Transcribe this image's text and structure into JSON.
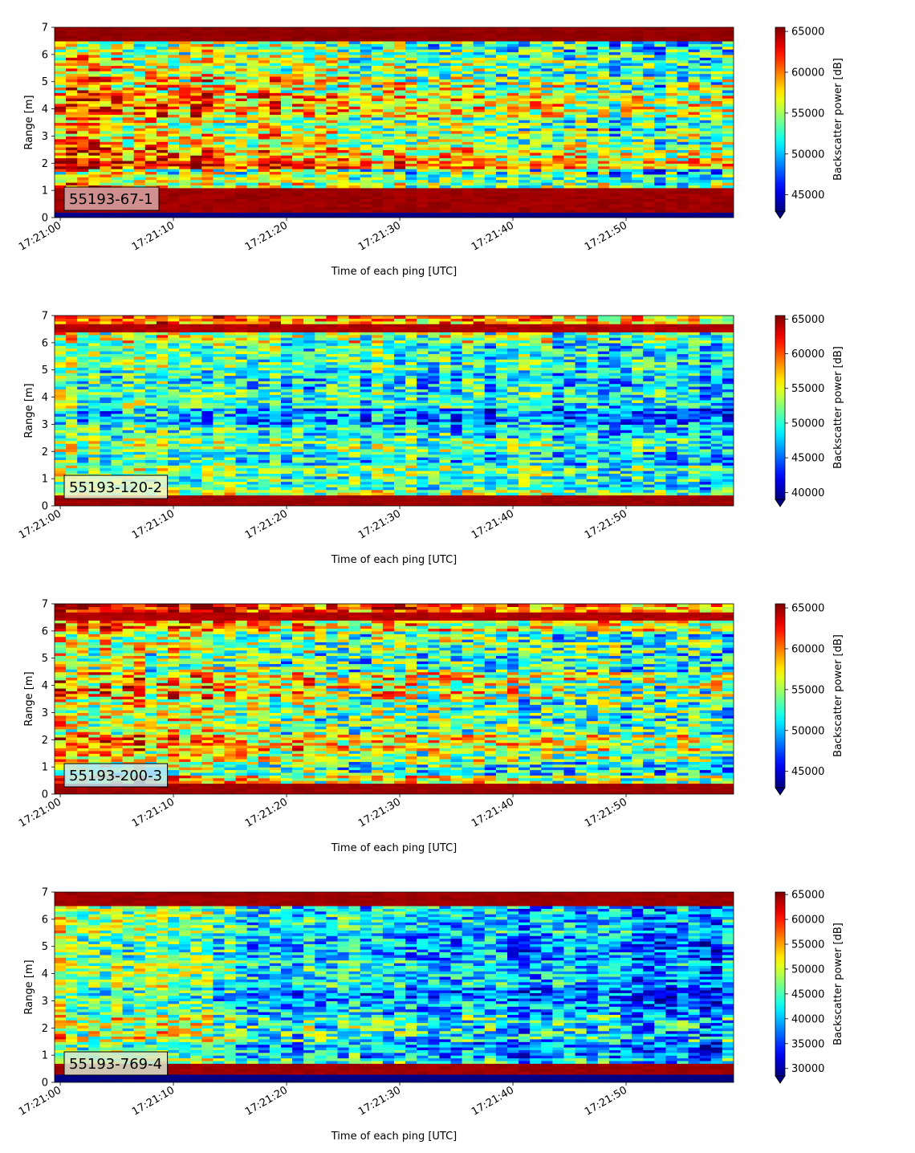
{
  "chart_data": [
    {
      "type": "heatmap",
      "label": "55193-67-1",
      "xlabel": "Time of each ping [UTC]",
      "ylabel": "Range [m]",
      "x_range": [
        "17:21:00",
        "17:21:59"
      ],
      "x_ticks": [
        "17:21:00",
        "17:21:10",
        "17:21:20",
        "17:21:30",
        "17:21:40",
        "17:21:50"
      ],
      "ylim": [
        0,
        7
      ],
      "y_ticks": [
        0,
        1,
        2,
        3,
        4,
        5,
        6,
        7
      ],
      "colorbar": {
        "label": "Backscatter power [dB]",
        "min": 43000,
        "max": 65500,
        "ticks": [
          45000,
          50000,
          55000,
          60000,
          65000
        ],
        "extend": "min",
        "colormap": "jet"
      },
      "label_box_color": "#d8a8a8",
      "bands": [
        [
          0.0,
          0.2,
          0.0,
          0.03
        ],
        [
          0.2,
          1.05,
          0.97,
          0.04
        ],
        [
          1.05,
          1.3,
          0.6,
          0.25
        ],
        [
          1.3,
          1.6,
          0.55,
          0.2
        ],
        [
          1.6,
          1.8,
          0.5,
          0.3
        ],
        [
          1.8,
          2.1,
          0.8,
          0.2
        ],
        [
          2.1,
          2.6,
          0.7,
          0.25
        ],
        [
          2.6,
          3.2,
          0.6,
          0.25
        ],
        [
          3.2,
          3.7,
          0.55,
          0.25
        ],
        [
          3.7,
          4.6,
          0.7,
          0.25
        ],
        [
          4.6,
          5.2,
          0.6,
          0.3
        ],
        [
          5.2,
          6.0,
          0.55,
          0.25
        ],
        [
          6.0,
          6.5,
          0.5,
          0.25
        ],
        [
          6.5,
          7.0,
          0.98,
          0.03
        ]
      ],
      "x_trend": [
        0.1,
        0.0,
        -0.1,
        -0.15
      ]
    },
    {
      "type": "heatmap",
      "label": "55193-120-2",
      "xlabel": "Time of each ping [UTC]",
      "ylabel": "Range [m]",
      "x_range": [
        "17:21:00",
        "17:21:59"
      ],
      "x_ticks": [
        "17:21:00",
        "17:21:10",
        "17:21:20",
        "17:21:30",
        "17:21:40",
        "17:21:50"
      ],
      "ylim": [
        0,
        7
      ],
      "y_ticks": [
        0,
        1,
        2,
        3,
        4,
        5,
        6,
        7
      ],
      "colorbar": {
        "label": "Backscatter power [dB]",
        "min": 39000,
        "max": 65500,
        "ticks": [
          40000,
          45000,
          50000,
          55000,
          60000,
          65000
        ],
        "extend": "min",
        "colormap": "jet"
      },
      "label_box_color": "#f0f4d0",
      "bands": [
        [
          0.0,
          0.35,
          0.97,
          0.03
        ],
        [
          0.35,
          0.6,
          0.55,
          0.2
        ],
        [
          0.6,
          1.1,
          0.45,
          0.2
        ],
        [
          1.1,
          1.5,
          0.5,
          0.2
        ],
        [
          1.5,
          2.0,
          0.4,
          0.2
        ],
        [
          2.0,
          2.5,
          0.5,
          0.2
        ],
        [
          2.5,
          3.0,
          0.4,
          0.2
        ],
        [
          3.0,
          3.6,
          0.3,
          0.2
        ],
        [
          3.6,
          4.3,
          0.45,
          0.2
        ],
        [
          4.3,
          5.0,
          0.4,
          0.2
        ],
        [
          5.0,
          6.0,
          0.45,
          0.2
        ],
        [
          6.0,
          6.4,
          0.55,
          0.25
        ],
        [
          6.4,
          6.7,
          0.95,
          0.05
        ],
        [
          6.7,
          7.0,
          0.75,
          0.2
        ]
      ],
      "x_trend": [
        0.05,
        0.0,
        -0.05,
        -0.1
      ]
    },
    {
      "type": "heatmap",
      "label": "55193-200-3",
      "xlabel": "Time of each ping [UTC]",
      "ylabel": "Range [m]",
      "x_range": [
        "17:21:00",
        "17:21:59"
      ],
      "x_ticks": [
        "17:21:00",
        "17:21:10",
        "17:21:20",
        "17:21:30",
        "17:21:40",
        "17:21:50"
      ],
      "ylim": [
        0,
        7
      ],
      "y_ticks": [
        0,
        1,
        2,
        3,
        4,
        5,
        6,
        7
      ],
      "colorbar": {
        "label": "Backscatter power [dB]",
        "min": 43000,
        "max": 65500,
        "ticks": [
          45000,
          50000,
          55000,
          60000,
          65000
        ],
        "extend": "min",
        "colormap": "jet"
      },
      "label_box_color": "#c0e8f4",
      "bands": [
        [
          0.0,
          0.4,
          0.97,
          0.03
        ],
        [
          0.4,
          0.7,
          0.6,
          0.25
        ],
        [
          0.7,
          1.2,
          0.45,
          0.25
        ],
        [
          1.2,
          1.6,
          0.55,
          0.25
        ],
        [
          1.6,
          2.2,
          0.65,
          0.25
        ],
        [
          2.2,
          2.8,
          0.5,
          0.25
        ],
        [
          2.8,
          3.5,
          0.5,
          0.25
        ],
        [
          3.5,
          4.5,
          0.6,
          0.3
        ],
        [
          4.5,
          5.2,
          0.45,
          0.25
        ],
        [
          5.2,
          6.0,
          0.5,
          0.25
        ],
        [
          6.0,
          6.4,
          0.65,
          0.25
        ],
        [
          6.4,
          6.7,
          0.95,
          0.05
        ],
        [
          6.7,
          7.0,
          0.8,
          0.2
        ]
      ],
      "x_trend": [
        0.1,
        0.0,
        -0.05,
        -0.1
      ]
    },
    {
      "type": "heatmap",
      "label": "55193-769-4",
      "xlabel": "Time of each ping [UTC]",
      "ylabel": "Range [m]",
      "x_range": [
        "17:21:00",
        "17:21:59"
      ],
      "x_ticks": [
        "17:21:00",
        "17:21:10",
        "17:21:20",
        "17:21:30",
        "17:21:40",
        "17:21:50"
      ],
      "ylim": [
        0,
        7
      ],
      "y_ticks": [
        0,
        1,
        2,
        3,
        4,
        5,
        6,
        7
      ],
      "colorbar": {
        "label": "Backscatter power [dB]",
        "min": 28500,
        "max": 65500,
        "ticks": [
          30000,
          35000,
          40000,
          45000,
          50000,
          55000,
          60000,
          65000
        ],
        "extend": "min",
        "colormap": "jet"
      },
      "label_box_color": "#d8e8d0",
      "bands": [
        [
          0.0,
          0.25,
          0.0,
          0.02
        ],
        [
          0.25,
          0.65,
          0.97,
          0.03
        ],
        [
          0.65,
          0.9,
          0.45,
          0.2
        ],
        [
          0.9,
          1.5,
          0.35,
          0.2
        ],
        [
          1.5,
          2.5,
          0.45,
          0.25
        ],
        [
          2.5,
          3.0,
          0.35,
          0.2
        ],
        [
          3.0,
          3.5,
          0.3,
          0.2
        ],
        [
          3.5,
          4.5,
          0.4,
          0.2
        ],
        [
          4.5,
          5.5,
          0.35,
          0.2
        ],
        [
          5.5,
          6.5,
          0.4,
          0.2
        ],
        [
          6.5,
          7.0,
          0.97,
          0.03
        ]
      ],
      "x_trend": [
        0.15,
        0.0,
        -0.08,
        -0.12
      ]
    }
  ]
}
